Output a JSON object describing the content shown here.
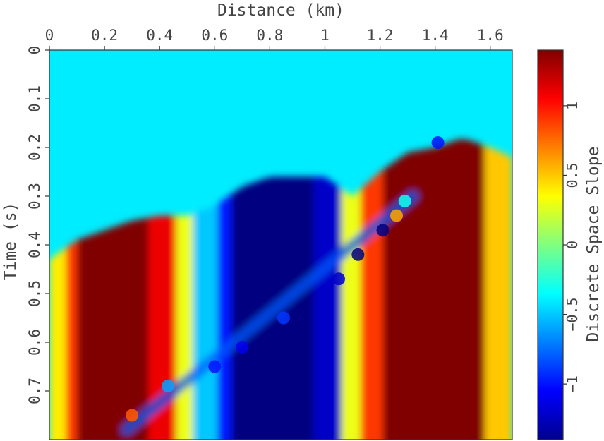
{
  "chart_data": {
    "type": "heatmap",
    "title": "",
    "xlabel": "Distance (km)",
    "ylabel": "Time (s)",
    "colorbar_label": "Discrete Space Slope",
    "x_ticks": [
      0,
      0.2,
      0.4,
      0.6,
      0.8,
      1,
      1.2,
      1.4,
      1.6
    ],
    "y_ticks": [
      0,
      0.1,
      0.2,
      0.3,
      0.4,
      0.5,
      0.6,
      0.7
    ],
    "colorbar_ticks": [
      -1,
      -0.5,
      0,
      0.5,
      1
    ],
    "xlim": [
      0,
      1.68
    ],
    "ylim": [
      0.8,
      0
    ],
    "clim": [
      -1.4,
      1.4
    ],
    "colormap": "jet",
    "background_value": -0.4,
    "regions": [
      {
        "x_range": [
          0.0,
          0.06
        ],
        "value": 0.4
      },
      {
        "x_range": [
          0.06,
          0.1
        ],
        "value": 0.9
      },
      {
        "x_range": [
          0.1,
          0.36
        ],
        "value": 1.4
      },
      {
        "x_range": [
          0.36,
          0.46
        ],
        "value": 1.1
      },
      {
        "x_range": [
          0.46,
          0.52
        ],
        "value": 0.3
      },
      {
        "x_range": [
          0.52,
          0.61
        ],
        "value": -0.5
      },
      {
        "x_range": [
          0.61,
          0.66
        ],
        "value": -1.0
      },
      {
        "x_range": [
          0.66,
          0.96
        ],
        "value": -1.4
      },
      {
        "x_range": [
          0.96,
          1.06
        ],
        "value": -1.2
      },
      {
        "x_range": [
          1.06,
          1.13
        ],
        "value": 0.3
      },
      {
        "x_range": [
          1.13,
          1.21
        ],
        "value": 0.9
      },
      {
        "x_range": [
          1.21,
          1.58
        ],
        "value": 1.4
      },
      {
        "x_range": [
          1.58,
          1.68
        ],
        "value": 0.5
      }
    ],
    "boundary_top_times": [
      {
        "x": 0.0,
        "t": 0.43
      },
      {
        "x": 0.1,
        "t": 0.39
      },
      {
        "x": 0.2,
        "t": 0.37
      },
      {
        "x": 0.3,
        "t": 0.35
      },
      {
        "x": 0.4,
        "t": 0.34
      },
      {
        "x": 0.5,
        "t": 0.34
      },
      {
        "x": 0.6,
        "t": 0.32
      },
      {
        "x": 0.7,
        "t": 0.28
      },
      {
        "x": 0.8,
        "t": 0.26
      },
      {
        "x": 0.9,
        "t": 0.26
      },
      {
        "x": 1.0,
        "t": 0.26
      },
      {
        "x": 1.1,
        "t": 0.3
      },
      {
        "x": 1.2,
        "t": 0.25
      },
      {
        "x": 1.3,
        "t": 0.21
      },
      {
        "x": 1.4,
        "t": 0.2
      },
      {
        "x": 1.5,
        "t": 0.18
      },
      {
        "x": 1.6,
        "t": 0.2
      },
      {
        "x": 1.68,
        "t": 0.22
      }
    ],
    "fault_line": {
      "start": {
        "x": 0.28,
        "t": 0.78
      },
      "end": {
        "x": 1.32,
        "t": 0.3
      },
      "value": -0.8
    },
    "fault_spots": [
      {
        "x": 0.3,
        "t": 0.75,
        "value": 0.8
      },
      {
        "x": 0.43,
        "t": 0.69,
        "value": -0.6
      },
      {
        "x": 0.6,
        "t": 0.65,
        "value": -1.0
      },
      {
        "x": 0.7,
        "t": 0.61,
        "value": -1.1
      },
      {
        "x": 0.85,
        "t": 0.55,
        "value": -0.9
      },
      {
        "x": 1.05,
        "t": 0.47,
        "value": -1.2
      },
      {
        "x": 1.12,
        "t": 0.42,
        "value": -1.4
      },
      {
        "x": 1.21,
        "t": 0.37,
        "value": -1.4
      },
      {
        "x": 1.26,
        "t": 0.34,
        "value": 0.6
      },
      {
        "x": 1.29,
        "t": 0.31,
        "value": -0.3
      },
      {
        "x": 1.41,
        "t": 0.19,
        "value": -1.0
      }
    ]
  }
}
